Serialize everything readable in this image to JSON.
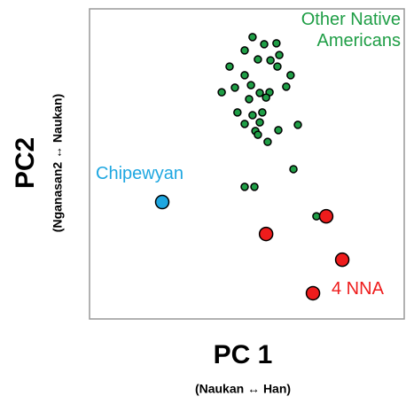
{
  "chart_data": {
    "type": "scatter",
    "x_label": "PC 1",
    "x_sublabel": "(Naukan ↔ Han)",
    "y_label": "PC2",
    "y_sublabel": "(Nganasan2 ↔ Naukan)",
    "xlim": [
      0,
      100
    ],
    "ylim": [
      0,
      100
    ],
    "series": [
      {
        "name": "Other Native Americans",
        "color": "#1f9e46",
        "x": [
          51.8,
          55.5,
          59.4,
          49.3,
          53.5,
          57.5,
          60.3,
          59.7,
          44.5,
          63.9,
          49.3,
          62.5,
          42.0,
          46.2,
          51.3,
          54.1,
          57.2,
          56.1,
          50.7,
          47.0,
          51.8,
          54.9,
          54.1,
          49.3,
          52.7,
          53.5,
          60.0,
          66.2,
          56.6,
          64.8,
          49.3,
          52.4,
          72.1
        ],
        "values": [
          90.9,
          88.6,
          88.9,
          86.6,
          83.7,
          83.4,
          85.1,
          81.4,
          81.4,
          78.6,
          78.6,
          74.9,
          73.1,
          74.6,
          75.4,
          72.9,
          73.1,
          71.4,
          70.9,
          66.6,
          65.7,
          66.6,
          63.4,
          62.9,
          60.6,
          59.4,
          60.9,
          62.6,
          57.1,
          48.3,
          42.6,
          42.6,
          33.1
        ]
      },
      {
        "name": "Chipewyan",
        "color": "#1ea7e1",
        "x": [
          23.1
        ],
        "values": [
          37.7
        ]
      },
      {
        "name": "4 NNA",
        "color": "#ee1c1c",
        "x": [
          75.2,
          56.1,
          80.3,
          71.0
        ],
        "values": [
          33.1,
          27.4,
          19.1,
          8.3
        ]
      }
    ]
  }
}
